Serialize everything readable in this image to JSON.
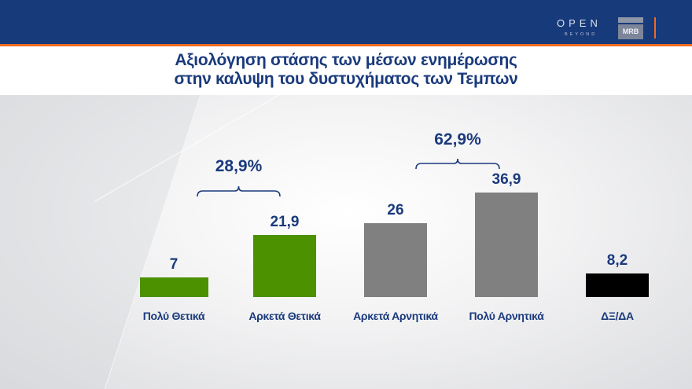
{
  "header": {
    "logo_open": "OPEN",
    "logo_beyond": "BEYOND",
    "logo_mrb": "MRB"
  },
  "title": {
    "line1": "Αξιολόγηση στάσης των μέσων ενημέρωσης",
    "line2": "στην καλυψη του δυστυχήματος των Τεμπων"
  },
  "colors": {
    "header_bg": "#173a7a",
    "accent": "#f06a22",
    "text": "#1a3a7c",
    "positive": "#4c9100",
    "negative": "#808080",
    "dk_na": "#000000"
  },
  "chart_data": {
    "type": "bar",
    "title": "Αξιολόγηση στάσης των μέσων ενημέρωσης στην καλυψη του δυστυχήματος των Τεμπων",
    "xlabel": "",
    "ylabel": "",
    "categories": [
      "Πολύ Θετικά",
      "Αρκετά Θετικά",
      "Αρκετά Αρνητικά",
      "Πολύ Αρνητικά",
      "ΔΞ/ΔΑ"
    ],
    "values": [
      7,
      21.9,
      26,
      36.9,
      8.2
    ],
    "value_labels": [
      "7",
      "21,9",
      "26",
      "36,9",
      "8,2"
    ],
    "bar_colors": [
      "#4c9100",
      "#4c9100",
      "#808080",
      "#808080",
      "#000000"
    ],
    "grid": false,
    "legend": "none",
    "annotations": [
      {
        "label": "28,9%",
        "spans": [
          "Πολύ Θετικά",
          "Αρκετά Θετικά"
        ],
        "value": 28.9
      },
      {
        "label": "62,9%",
        "spans": [
          "Αρκετά Αρνητικά",
          "Πολύ Αρνητικά"
        ],
        "value": 62.9
      }
    ],
    "ylim": [
      0,
      40
    ]
  }
}
